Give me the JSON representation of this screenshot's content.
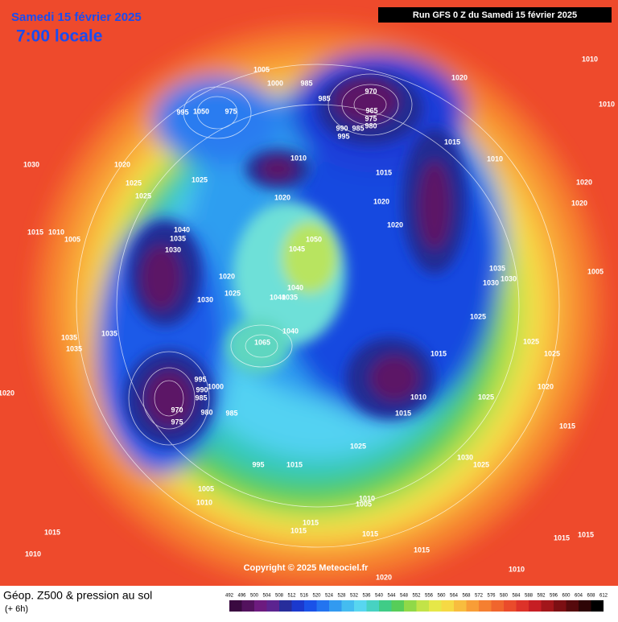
{
  "header": {
    "date": "Samedi 15 février 2025",
    "time": "7:00 locale",
    "run": "Run GFS 0 Z du Samedi 15 février 2025"
  },
  "footer": {
    "title": "Géop. Z500 & pression au sol",
    "step": "(+ 6h)",
    "copyright": "Copyright © 2025 Meteociel.fr"
  },
  "scale": [
    492,
    496,
    500,
    504,
    508,
    512,
    516,
    520,
    524,
    528,
    532,
    536,
    540,
    544,
    548,
    552,
    556,
    560,
    564,
    568,
    572,
    576,
    580,
    584,
    588,
    592,
    596,
    600,
    604,
    608,
    612
  ],
  "pressure_labels": [
    1005,
    1000,
    985,
    970,
    985,
    965,
    975,
    980,
    990,
    985,
    995,
    1020,
    1010,
    1010,
    995,
    1050,
    975,
    1015,
    1010,
    1015,
    1010,
    1020,
    1030,
    1025,
    1025,
    1025,
    1020,
    1020,
    1020,
    1020,
    1020,
    1015,
    1010,
    1005,
    1040,
    1035,
    1050,
    1045,
    1030,
    1020,
    1025,
    1030,
    1040,
    1040,
    1035,
    1035,
    1030,
    1030,
    1005,
    1025,
    1035,
    1035,
    1035,
    1040,
    1065,
    1015,
    1025,
    1025,
    1020,
    1025,
    995,
    990,
    1000,
    985,
    970,
    975,
    980,
    985,
    1010,
    1015,
    1025,
    1015,
    1030,
    1025,
    995,
    1015,
    1005,
    1010,
    1010,
    1005,
    1015,
    1015,
    1015,
    1015,
    1015,
    1015,
    1010,
    1015,
    1010,
    1020,
    1020
  ]
}
